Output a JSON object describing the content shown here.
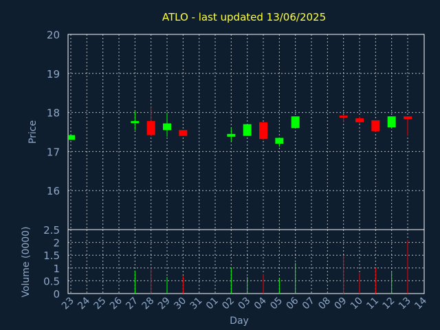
{
  "chart_data": [
    {
      "type": "candlestick",
      "title": "ATLO - last updated 13/06/2025",
      "ylabel": "Price",
      "ylim": [
        15,
        20
      ],
      "yticks": [
        "16",
        "17",
        "18",
        "19",
        "20"
      ],
      "grid": true,
      "colors": {
        "up": "#00ff00",
        "down": "#ff0000",
        "text": "#8fa8c8",
        "title": "#ffff33",
        "grid": "#ffffff",
        "background": "#0f1e2f"
      },
      "candles": [
        {
          "day": "23",
          "open": 17.3,
          "high": 17.42,
          "low": 17.3,
          "close": 17.42
        },
        {
          "day": "27",
          "open": 17.75,
          "high": 18.04,
          "low": 17.55,
          "close": 17.78
        },
        {
          "day": "28",
          "open": 17.78,
          "high": 18.14,
          "low": 17.4,
          "close": 17.42
        },
        {
          "day": "29",
          "open": 17.55,
          "high": 18.0,
          "low": 17.38,
          "close": 17.72
        },
        {
          "day": "30",
          "open": 17.55,
          "high": 17.55,
          "low": 17.4,
          "close": 17.4
        },
        {
          "day": "02",
          "open": 17.38,
          "high": 17.6,
          "low": 17.25,
          "close": 17.45
        },
        {
          "day": "03",
          "open": 17.4,
          "high": 17.7,
          "low": 17.4,
          "close": 17.7
        },
        {
          "day": "04",
          "open": 17.75,
          "high": 17.75,
          "low": 17.3,
          "close": 17.32
        },
        {
          "day": "05",
          "open": 17.2,
          "high": 17.35,
          "low": 17.12,
          "close": 17.35
        },
        {
          "day": "06",
          "open": 17.6,
          "high": 17.9,
          "low": 17.6,
          "close": 17.9
        },
        {
          "day": "09",
          "open": 17.92,
          "high": 17.95,
          "low": 17.75,
          "close": 17.88
        },
        {
          "day": "10",
          "open": 17.85,
          "high": 17.88,
          "low": 17.72,
          "close": 17.75
        },
        {
          "day": "11",
          "open": 17.8,
          "high": 17.8,
          "low": 17.5,
          "close": 17.52
        },
        {
          "day": "12",
          "open": 17.62,
          "high": 17.9,
          "low": 17.6,
          "close": 17.9
        },
        {
          "day": "13",
          "open": 17.9,
          "high": 17.9,
          "low": 17.4,
          "close": 17.83
        }
      ]
    },
    {
      "type": "bar",
      "xlabel": "Day",
      "ylabel": "Volume (0000)",
      "ylim": [
        0,
        2.5
      ],
      "yticks": [
        "0",
        "0.5",
        "1",
        "1.5",
        "2",
        "2.5"
      ],
      "grid": true,
      "categories": [
        "23",
        "24",
        "25",
        "26",
        "27",
        "28",
        "29",
        "30",
        "31",
        "01",
        "02",
        "03",
        "04",
        "05",
        "06",
        "07",
        "08",
        "09",
        "10",
        "11",
        "12",
        "13",
        "14"
      ],
      "volumes": [
        {
          "day": "27",
          "value": 0.9,
          "dir": "up"
        },
        {
          "day": "28",
          "value": 1.0,
          "dir": "down"
        },
        {
          "day": "29",
          "value": 0.65,
          "dir": "up"
        },
        {
          "day": "30",
          "value": 0.7,
          "dir": "down"
        },
        {
          "day": "02",
          "value": 1.0,
          "dir": "up"
        },
        {
          "day": "03",
          "value": 0.65,
          "dir": "up"
        },
        {
          "day": "04",
          "value": 0.75,
          "dir": "down"
        },
        {
          "day": "05",
          "value": 0.6,
          "dir": "up"
        },
        {
          "day": "06",
          "value": 1.2,
          "dir": "up"
        },
        {
          "day": "09",
          "value": 1.5,
          "dir": "down"
        },
        {
          "day": "10",
          "value": 0.8,
          "dir": "down"
        },
        {
          "day": "11",
          "value": 1.0,
          "dir": "down"
        },
        {
          "day": "12",
          "value": 0.85,
          "dir": "up"
        },
        {
          "day": "13",
          "value": 2.1,
          "dir": "down"
        }
      ]
    }
  ]
}
